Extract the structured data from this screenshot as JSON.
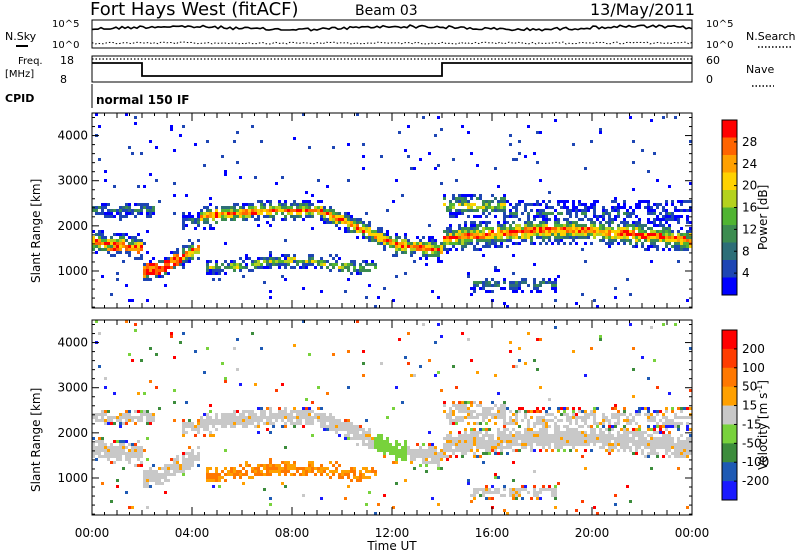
{
  "header": {
    "title": "Fort Hays West (fitACF)",
    "beam": "Beam 03",
    "date": "13/May/2011"
  },
  "top_panels": {
    "nsky_label": "N.Sky",
    "nsearch_label": "N.Search",
    "nsky_ticks": [
      "10^5",
      "10^0"
    ],
    "nsearch_ticks": [
      "10^5",
      "10^0"
    ],
    "freq_label_1": "Freq.",
    "freq_label_2": "[MHz]",
    "freq_ticks": [
      "18",
      "8"
    ],
    "nave_label": "Nave",
    "nave_ticks": [
      "60",
      "0"
    ],
    "cpid_label": "CPID",
    "cpid_value": "normal 150 IF"
  },
  "colors": {
    "power": [
      "#0000ff",
      "#1e46b4",
      "#2d6e78",
      "#3c8c50",
      "#50b432",
      "#b4d21e",
      "#ffd200",
      "#ffa000",
      "#ff6400",
      "#ff0000"
    ],
    "velocity": [
      "#1a1aff",
      "#1e5ab4",
      "#3c8c3c",
      "#78d23c",
      "#c8c8c8",
      "#ffa000",
      "#ff7800",
      "#ff3c00",
      "#ff0000"
    ]
  },
  "chart_data": [
    {
      "type": "heatmap",
      "title": "",
      "ylabel": "Slant Range [km]",
      "xlabel": "",
      "xlim": [
        "00:00",
        "24:00"
      ],
      "ylim": [
        180,
        4500
      ],
      "yticks": [
        "1000",
        "2000",
        "3000",
        "4000"
      ],
      "colorbar": {
        "label": "Power [dB]",
        "ticks": [
          "4",
          "8",
          "12",
          "16",
          "20",
          "24",
          "28"
        ],
        "range": [
          0,
          32
        ]
      },
      "echo_bands": [
        {
          "time": "00:00-02:00",
          "range_km": [
            1300,
            2400
          ]
        },
        {
          "time": "02:00-04:00",
          "range_km": [
            800,
            1600
          ]
        },
        {
          "time": "04:00-12:00",
          "range_km": [
            1700,
            2700
          ]
        },
        {
          "time": "05:00-11:00",
          "range_km": [
            900,
            1400
          ]
        },
        {
          "time": "12:00-14:00",
          "range_km": [
            1200,
            2000
          ]
        },
        {
          "time": "14:00-24:00",
          "range_km": [
            1400,
            2800
          ]
        },
        {
          "time": "15:00-18:00",
          "range_km": [
            500,
            900
          ]
        }
      ]
    },
    {
      "type": "heatmap",
      "title": "",
      "ylabel": "Slant Range [km]",
      "xlabel": "Time UT",
      "xlim": [
        "00:00",
        "24:00"
      ],
      "ylim": [
        180,
        4500
      ],
      "yticks": [
        "1000",
        "2000",
        "3000",
        "4000"
      ],
      "xticks": [
        "00:00",
        "04:00",
        "08:00",
        "12:00",
        "16:00",
        "20:00",
        "00:00"
      ],
      "colorbar": {
        "label": "Velocity [m s-1]",
        "ticks": [
          "200",
          "100",
          "50",
          "15",
          "-15",
          "-50",
          "-100",
          "-200"
        ],
        "range": [
          -250,
          250
        ]
      }
    }
  ],
  "axis_labels": {
    "ylabel_text": "Slant Range ",
    "ylabel_unit": "[km]",
    "power_label": "Power [dB]",
    "velocity_text": "Velocity ",
    "velocity_unit": "[m s",
    "velocity_exp": "-1",
    "velocity_close": "]",
    "xlabel": "Time UT"
  }
}
